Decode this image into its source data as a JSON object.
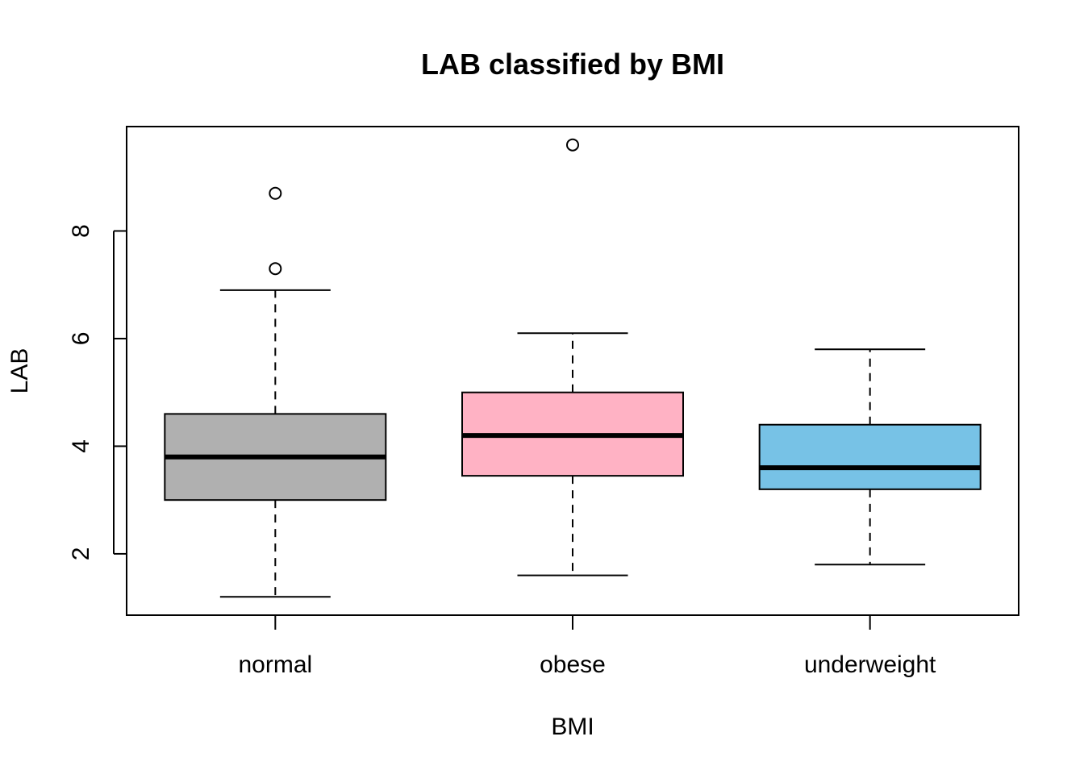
{
  "chart_data": {
    "type": "boxplot",
    "title": "LAB classified by BMI",
    "xlabel": "BMI",
    "ylabel": "LAB",
    "ylim": [
      0.86,
      9.94
    ],
    "yticks": [
      2,
      4,
      6,
      8
    ],
    "categories": [
      "normal",
      "obese",
      "underweight"
    ],
    "boxes": [
      {
        "category": "normal",
        "min": 1.2,
        "q1": 3.0,
        "median": 3.8,
        "q3": 4.6,
        "max": 6.9,
        "outliers": [
          7.3,
          8.7
        ],
        "color": "#b0b0b0"
      },
      {
        "category": "obese",
        "min": 1.6,
        "q1": 3.45,
        "median": 4.2,
        "q3": 5.0,
        "max": 6.1,
        "outliers": [
          9.6
        ],
        "color": "#ffb2c4"
      },
      {
        "category": "underweight",
        "min": 1.8,
        "q1": 3.2,
        "median": 3.6,
        "q3": 4.4,
        "max": 5.8,
        "outliers": [],
        "color": "#77c2e6"
      }
    ],
    "grid": false,
    "legend": "none"
  }
}
